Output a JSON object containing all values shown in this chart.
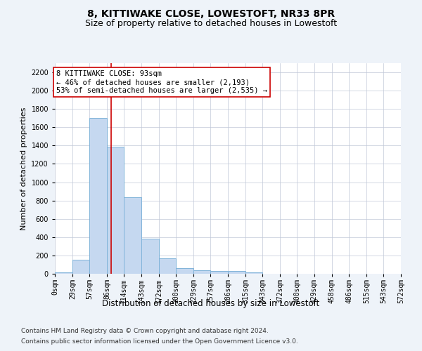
{
  "title": "8, KITTIWAKE CLOSE, LOWESTOFT, NR33 8PR",
  "subtitle": "Size of property relative to detached houses in Lowestoft",
  "bar_values": [
    15,
    155,
    1700,
    1390,
    835,
    380,
    165,
    65,
    40,
    30,
    30,
    15,
    0,
    0,
    0,
    0,
    0,
    0,
    0,
    0
  ],
  "bin_edges": [
    0,
    29,
    57,
    86,
    114,
    143,
    172,
    200,
    229,
    257,
    286,
    315,
    343,
    372,
    400,
    429,
    458,
    486,
    515,
    543,
    572
  ],
  "xlabels": [
    "0sqm",
    "29sqm",
    "57sqm",
    "86sqm",
    "114sqm",
    "143sqm",
    "172sqm",
    "200sqm",
    "229sqm",
    "257sqm",
    "286sqm",
    "315sqm",
    "343sqm",
    "372sqm",
    "400sqm",
    "429sqm",
    "458sqm",
    "486sqm",
    "515sqm",
    "543sqm",
    "572sqm"
  ],
  "ylabel": "Number of detached properties",
  "xlabel": "Distribution of detached houses by size in Lowestoft",
  "ylim": [
    0,
    2300
  ],
  "yticks": [
    0,
    200,
    400,
    600,
    800,
    1000,
    1200,
    1400,
    1600,
    1800,
    2000,
    2200
  ],
  "bar_color": "#c5d8f0",
  "bar_edgecolor": "#7fb3d9",
  "vline_x": 93,
  "vline_color": "#cc0000",
  "annotation_text": "8 KITTIWAKE CLOSE: 93sqm\n← 46% of detached houses are smaller (2,193)\n53% of semi-detached houses are larger (2,535) →",
  "annotation_box_color": "#ffffff",
  "annotation_box_edgecolor": "#cc0000",
  "footer_line1": "Contains HM Land Registry data © Crown copyright and database right 2024.",
  "footer_line2": "Contains public sector information licensed under the Open Government Licence v3.0.",
  "bg_color": "#eef3f9",
  "plot_bg_color": "#ffffff",
  "title_fontsize": 10,
  "subtitle_fontsize": 9,
  "tick_fontsize": 7,
  "ylabel_fontsize": 8,
  "xlabel_fontsize": 8.5,
  "footer_fontsize": 6.5,
  "annotation_fontsize": 7.5
}
